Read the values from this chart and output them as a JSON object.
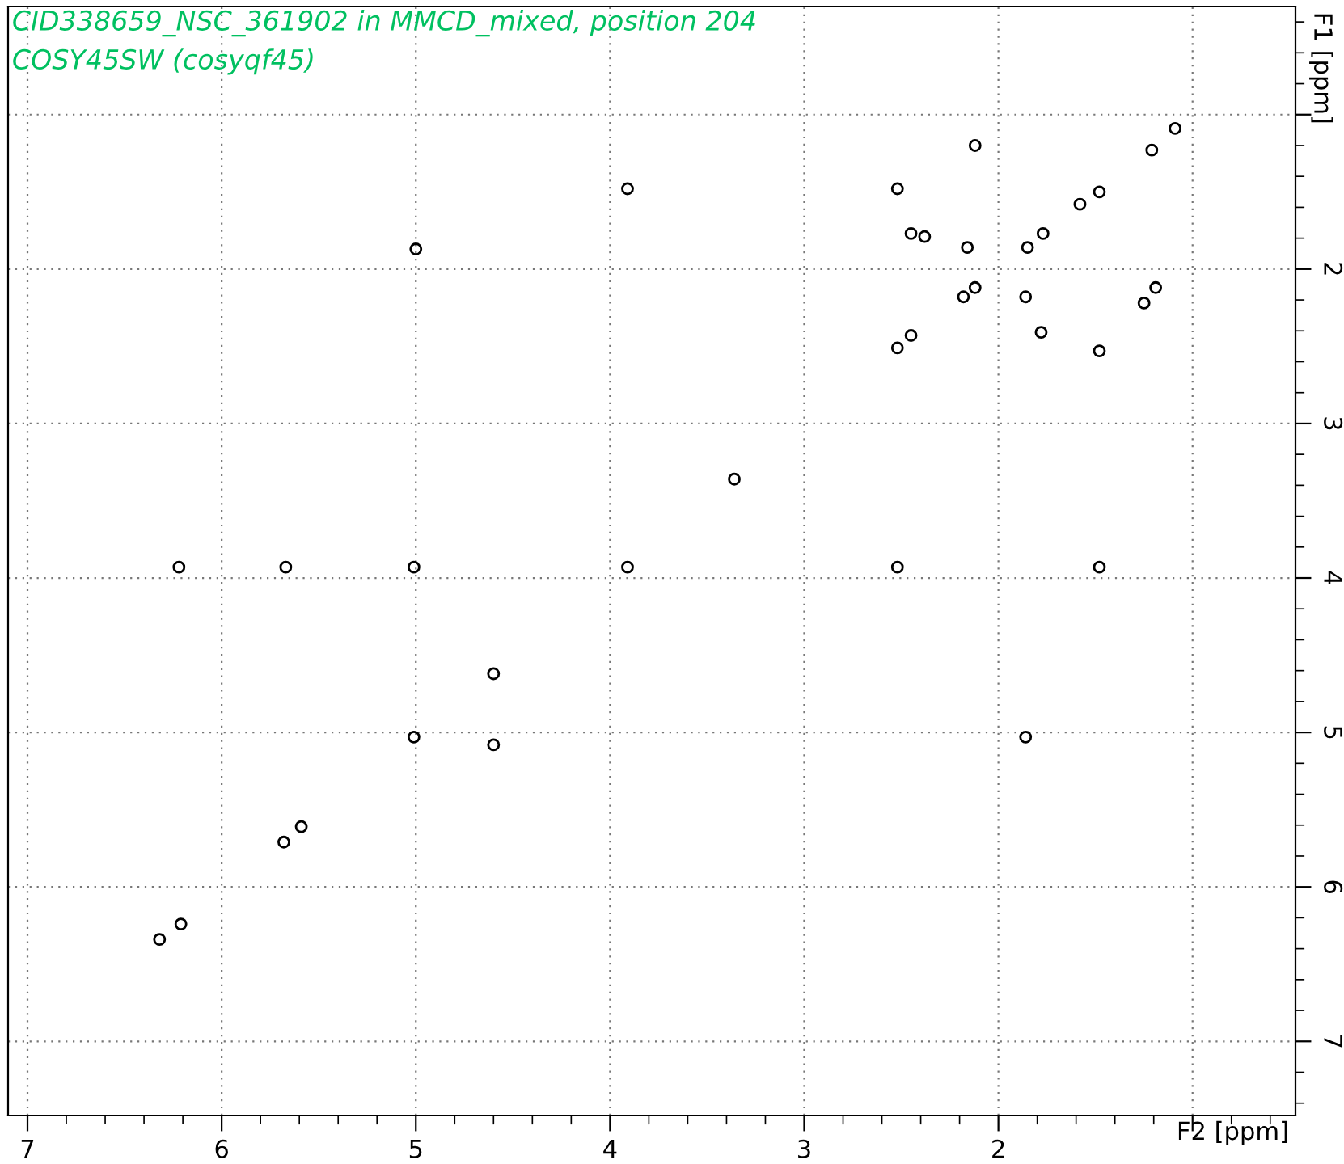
{
  "chart_data": {
    "type": "scatter",
    "title": "CID338659_NSC_361902 in MMCD_mixed, position 204",
    "subtitle": "COSY45SW (cosyqf45)",
    "xlabel": "F2 [ppm]",
    "ylabel": "F1 [ppm]",
    "x": [
      1.09,
      1.21,
      2.12,
      3.91,
      2.52,
      1.48,
      1.58,
      5.0,
      2.45,
      2.38,
      2.16,
      1.85,
      1.77,
      1.19,
      1.25,
      2.12,
      2.18,
      1.86,
      1.78,
      2.45,
      2.52,
      1.48,
      3.36,
      6.22,
      5.67,
      5.01,
      3.91,
      2.52,
      1.48,
      4.6,
      5.01,
      4.6,
      1.86,
      5.68,
      5.59,
      6.21,
      6.32
    ],
    "values": [
      1.09,
      1.23,
      1.2,
      1.48,
      1.48,
      1.5,
      1.58,
      1.87,
      1.77,
      1.79,
      1.86,
      1.86,
      1.77,
      2.12,
      2.22,
      2.12,
      2.18,
      2.18,
      2.41,
      2.43,
      2.51,
      2.53,
      3.36,
      3.93,
      3.93,
      3.93,
      3.93,
      3.93,
      3.93,
      4.62,
      5.03,
      5.08,
      5.03,
      5.71,
      5.61,
      6.24,
      6.34
    ],
    "color": "#000000",
    "marker": "circle",
    "xlim": [
      7.1,
      0.47
    ],
    "xticks": [
      7,
      6,
      5,
      4,
      3,
      2,
      {
        "value": 1,
        "label": null
      }
    ],
    "ylim": [
      7.48,
      0.3
    ],
    "yticks": [
      {
        "value": 1,
        "label": null
      },
      2,
      3,
      4,
      5,
      6,
      7
    ],
    "grid": true
  }
}
